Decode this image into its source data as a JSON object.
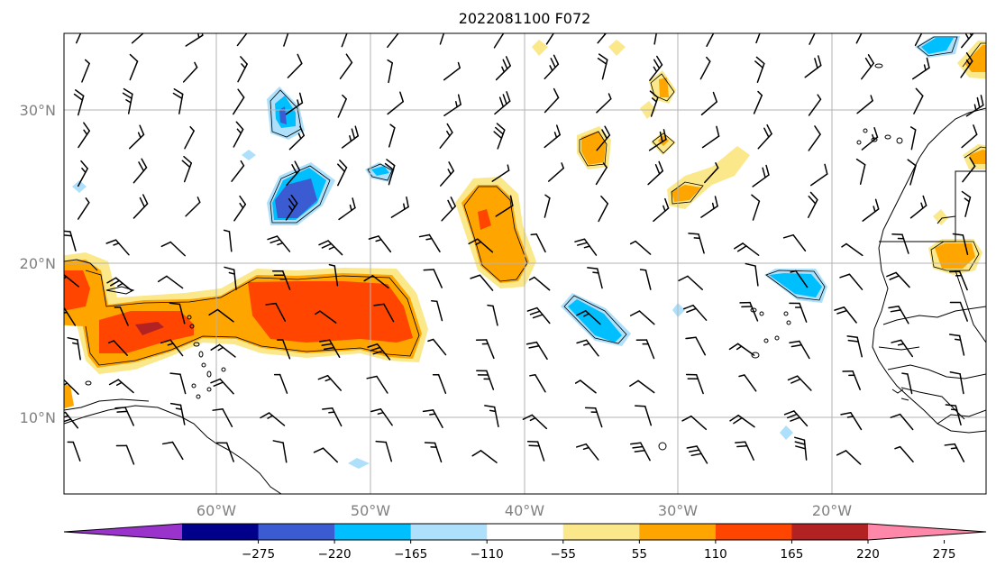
{
  "map": {
    "title": "2022081100 F072",
    "lon_range": [
      -70,
      -10
    ],
    "lat_range": [
      5,
      35
    ],
    "gridlines": true,
    "lat_labels": [
      {
        "value": 10,
        "text": "10°N"
      },
      {
        "value": 20,
        "text": "20°N"
      },
      {
        "value": 30,
        "text": "30°N"
      }
    ],
    "lon_labels": [
      {
        "value": -60,
        "text": "60°W"
      },
      {
        "value": -50,
        "text": "50°W"
      },
      {
        "value": -40,
        "text": "40°W"
      },
      {
        "value": -30,
        "text": "30°W"
      },
      {
        "value": -20,
        "text": "20°W"
      }
    ],
    "field_colors": {
      "neg_275": "#9933cc",
      "neg_220": "#00008b",
      "neg_165": "#3a5bd1",
      "neg_110": "#00bfff",
      "neg_55": "#aee0fb",
      "pos_55": "#fbe88a",
      "pos_110": "#ffa500",
      "pos_165": "#ff4500",
      "pos_220": "#b22222",
      "pos_275": "#ff88aa"
    }
  },
  "colorbar": {
    "colors": [
      "#9933cc",
      "#00008b",
      "#3a5bd1",
      "#00bfff",
      "#aee0fb",
      "#ffffff",
      "#fbe88a",
      "#ffa500",
      "#ff4500",
      "#b22222",
      "#ff88aa"
    ],
    "ticks": [
      "−275",
      "−220",
      "−165",
      "−110",
      "−55",
      "55",
      "110",
      "165",
      "220",
      "275"
    ]
  }
}
